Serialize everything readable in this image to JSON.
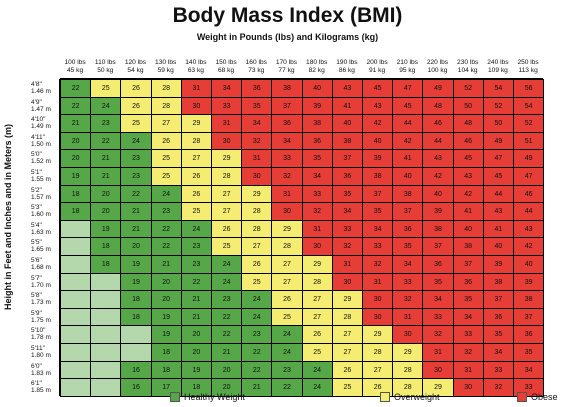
{
  "title": "Body Mass Index (BMI)",
  "subtitle": "Weight in Pounds (lbs) and Kilograms (kg)",
  "ylabel": "Height in Feet and Inches and in Meters (m)",
  "legend": [
    {
      "label": "Healthy Weight",
      "color": "#55a747"
    },
    {
      "label": "Overweight",
      "color": "#f5ec72"
    },
    {
      "label": "Obese",
      "color": "#e63d37"
    }
  ],
  "colors": {
    "underweight": "#b4d7ab",
    "healthy": "#55a747",
    "overweight": "#f5ec72",
    "obese": "#e63d37"
  },
  "chart_data": {
    "type": "table",
    "title": "Body Mass Index (BMI)",
    "xlabel": "Weight in Pounds (lbs) and Kilograms (kg)",
    "ylabel": "Height in Feet and Inches and in Meters (m)",
    "columns": [
      {
        "lbs": "100 lbs",
        "kg": "45 kg"
      },
      {
        "lbs": "110 lbs",
        "kg": "50 kg"
      },
      {
        "lbs": "120 lbs",
        "kg": "54 kg"
      },
      {
        "lbs": "130 lbs",
        "kg": "59 kg"
      },
      {
        "lbs": "140 lbs",
        "kg": "63 kg"
      },
      {
        "lbs": "150 lbs",
        "kg": "68 kg"
      },
      {
        "lbs": "160 lbs",
        "kg": "73 kg"
      },
      {
        "lbs": "170 lbs",
        "kg": "77 kg"
      },
      {
        "lbs": "180 lbs",
        "kg": "82 kg"
      },
      {
        "lbs": "190 lbs",
        "kg": "86 kg"
      },
      {
        "lbs": "200 lbs",
        "kg": "91 kg"
      },
      {
        "lbs": "210 lbs",
        "kg": "95 kg"
      },
      {
        "lbs": "220 lbs",
        "kg": "100 kg"
      },
      {
        "lbs": "230 lbs",
        "kg": "104 kg"
      },
      {
        "lbs": "240 lbs",
        "kg": "109 kg"
      },
      {
        "lbs": "250 lbs",
        "kg": "113 kg"
      }
    ],
    "rows": [
      {
        "ft": "4'8\"",
        "m": "1.46 m",
        "values": [
          22,
          25,
          26,
          28,
          31,
          34,
          36,
          38,
          40,
          43,
          45,
          47,
          49,
          52,
          54,
          56
        ]
      },
      {
        "ft": "4'9\"",
        "m": "1.47 m",
        "values": [
          22,
          24,
          26,
          28,
          30,
          33,
          35,
          37,
          39,
          41,
          43,
          45,
          48,
          50,
          52,
          54
        ]
      },
      {
        "ft": "4'10\"",
        "m": "1.49 m",
        "values": [
          21,
          23,
          25,
          27,
          29,
          31,
          34,
          36,
          38,
          40,
          42,
          44,
          46,
          48,
          50,
          52
        ]
      },
      {
        "ft": "4'11\"",
        "m": "1.50 m",
        "values": [
          20,
          22,
          24,
          26,
          28,
          30,
          32,
          34,
          36,
          38,
          40,
          42,
          44,
          46,
          49,
          51
        ]
      },
      {
        "ft": "5'0\"",
        "m": "1.52 m",
        "values": [
          20,
          21,
          23,
          25,
          27,
          29,
          31,
          33,
          35,
          37,
          39,
          41,
          43,
          45,
          47,
          49
        ]
      },
      {
        "ft": "5'1\"",
        "m": "1.55 m",
        "values": [
          19,
          21,
          23,
          25,
          26,
          28,
          30,
          32,
          34,
          36,
          38,
          40,
          42,
          43,
          45,
          47
        ]
      },
      {
        "ft": "5'2\"",
        "m": "1.57 m",
        "values": [
          18,
          20,
          22,
          24,
          26,
          27,
          29,
          31,
          33,
          35,
          37,
          38,
          40,
          42,
          44,
          46
        ]
      },
      {
        "ft": "5'3\"",
        "m": "1.60 m",
        "values": [
          18,
          20,
          21,
          23,
          25,
          27,
          28,
          30,
          32,
          34,
          35,
          37,
          39,
          41,
          43,
          44
        ]
      },
      {
        "ft": "5'4\"",
        "m": "1.63 m",
        "values": [
          null,
          19,
          21,
          22,
          24,
          26,
          28,
          29,
          31,
          33,
          34,
          36,
          38,
          40,
          41,
          43
        ]
      },
      {
        "ft": "5'5\"",
        "m": "1.65 m",
        "values": [
          null,
          18,
          20,
          22,
          23,
          25,
          27,
          28,
          30,
          32,
          33,
          35,
          37,
          38,
          40,
          42
        ]
      },
      {
        "ft": "5'6\"",
        "m": "1.68 m",
        "values": [
          null,
          18,
          19,
          21,
          23,
          24,
          26,
          27,
          29,
          31,
          32,
          34,
          36,
          37,
          39,
          40
        ]
      },
      {
        "ft": "5'7\"",
        "m": "1.70 m",
        "values": [
          null,
          null,
          19,
          20,
          22,
          24,
          25,
          27,
          28,
          30,
          31,
          33,
          35,
          36,
          38,
          39
        ]
      },
      {
        "ft": "5'8\"",
        "m": "1.73 m",
        "values": [
          null,
          null,
          18,
          20,
          21,
          23,
          24,
          26,
          27,
          29,
          30,
          32,
          34,
          35,
          37,
          38
        ]
      },
      {
        "ft": "5'9\"",
        "m": "1.75 m",
        "values": [
          null,
          null,
          18,
          19,
          21,
          22,
          24,
          25,
          27,
          28,
          30,
          31,
          33,
          34,
          36,
          37
        ]
      },
      {
        "ft": "5'10\"",
        "m": "1.78 m",
        "values": [
          null,
          null,
          null,
          19,
          20,
          22,
          23,
          24,
          26,
          27,
          29,
          30,
          32,
          33,
          35,
          36
        ]
      },
      {
        "ft": "5'11\"",
        "m": "1.80 m",
        "values": [
          null,
          null,
          null,
          18,
          20,
          21,
          22,
          24,
          25,
          27,
          28,
          29,
          31,
          32,
          34,
          35
        ]
      },
      {
        "ft": "6'0\"",
        "m": "1.83 m",
        "values": [
          null,
          null,
          16,
          18,
          19,
          20,
          22,
          23,
          24,
          26,
          27,
          28,
          30,
          31,
          33,
          34
        ]
      },
      {
        "ft": "6'1\"",
        "m": "1.85 m",
        "values": [
          null,
          null,
          16,
          17,
          18,
          20,
          21,
          22,
          24,
          25,
          26,
          28,
          29,
          30,
          32,
          33
        ]
      }
    ],
    "thresholds": {
      "healthy_min": 18.5,
      "overweight_min": 25,
      "obese_min": 30
    }
  }
}
